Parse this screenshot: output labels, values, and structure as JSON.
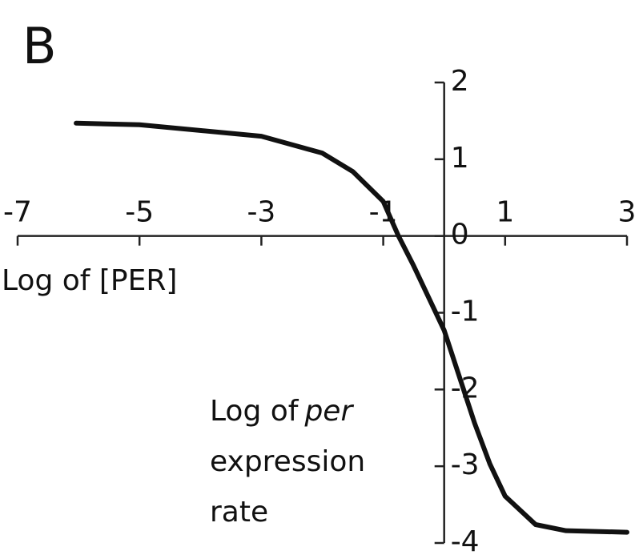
{
  "chart_data": {
    "type": "line",
    "panel_label": "B",
    "xlabel": "Log of [PER]",
    "ylabel_start": "Log of",
    "ylabel_italic": "per",
    "ylabel_lines": [
      "expression",
      "rate"
    ],
    "x": [
      -6.04,
      -5,
      -3,
      -2,
      -1.5,
      -1,
      -0.75,
      -0.5,
      0,
      0.5,
      0.75,
      1,
      1.5,
      2,
      3
    ],
    "series": [
      {
        "color": "#111111",
        "values": [
          1.47,
          1.45,
          1.3,
          1.08,
          0.84,
          0.45,
          0,
          -0.39,
          -1.23,
          -2.44,
          -2.97,
          -3.39,
          -3.76,
          -3.84,
          -3.86
        ]
      }
    ],
    "xlim": [
      -7,
      3
    ],
    "xticks": [
      -7,
      -5,
      -3,
      -1,
      1,
      3
    ],
    "ylim": [
      -4,
      2
    ],
    "yticks": [
      2,
      1,
      0,
      -1,
      -2,
      -3,
      -4
    ]
  }
}
